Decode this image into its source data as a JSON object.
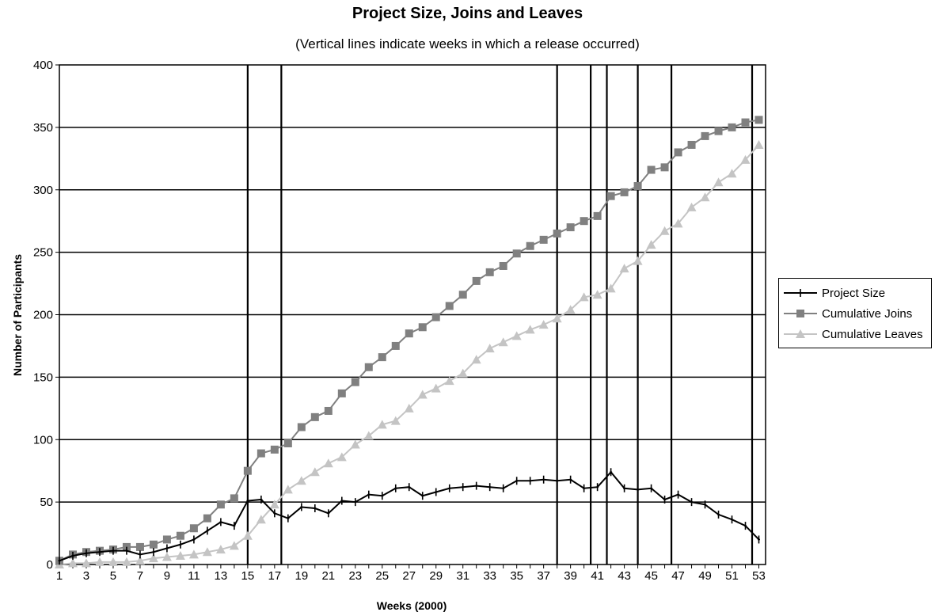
{
  "chart_data": {
    "type": "line",
    "title": "Project Size, Joins and Leaves",
    "subtitle": "(Vertical lines indicate weeks in which a release occurred)",
    "xlabel": "Weeks (2000)",
    "ylabel": "Number of Participants",
    "x": [
      1,
      2,
      3,
      4,
      5,
      6,
      7,
      8,
      9,
      10,
      11,
      12,
      13,
      14,
      15,
      16,
      17,
      18,
      19,
      20,
      21,
      22,
      23,
      24,
      25,
      26,
      27,
      28,
      29,
      30,
      31,
      32,
      33,
      34,
      35,
      36,
      37,
      38,
      39,
      40,
      41,
      42,
      43,
      44,
      45,
      46,
      47,
      48,
      49,
      50,
      51,
      52,
      53
    ],
    "x_tick_labels": [
      "1",
      "3",
      "5",
      "7",
      "9",
      "11",
      "13",
      "15",
      "17",
      "19",
      "21",
      "23",
      "25",
      "27",
      "29",
      "31",
      "33",
      "35",
      "37",
      "39",
      "41",
      "43",
      "45",
      "47",
      "49",
      "51",
      "53"
    ],
    "ylim": [
      0,
      400
    ],
    "y_ticks": [
      0,
      50,
      100,
      150,
      200,
      250,
      300,
      350,
      400
    ],
    "grid": "horizontal",
    "legend_position": "right",
    "release_weeks": [
      15,
      17.5,
      38,
      40.5,
      41.7,
      44,
      46.5,
      52.5
    ],
    "series": [
      {
        "name": "Project Size",
        "marker": "plus",
        "color": "#000000",
        "values": [
          3,
          7,
          9,
          10,
          11,
          11,
          8,
          10,
          13,
          16,
          20,
          27,
          34,
          31,
          51,
          52,
          41,
          37,
          46,
          45,
          41,
          51,
          50,
          56,
          55,
          61,
          62,
          55,
          58,
          61,
          62,
          63,
          62,
          61,
          67,
          67,
          68,
          67,
          68,
          61,
          62,
          74,
          61,
          60,
          61,
          52,
          56,
          50,
          48,
          40,
          36,
          31,
          20
        ]
      },
      {
        "name": "Cumulative Joins",
        "marker": "square",
        "color": "#808080",
        "values": [
          3,
          8,
          10,
          11,
          12,
          14,
          14,
          16,
          20,
          23,
          29,
          37,
          48,
          53,
          75,
          89,
          92,
          97,
          110,
          118,
          123,
          137,
          146,
          158,
          166,
          175,
          185,
          190,
          198,
          207,
          216,
          227,
          234,
          239,
          249,
          255,
          260,
          265,
          270,
          275,
          279,
          295,
          298,
          303,
          316,
          318,
          330,
          336,
          343,
          347,
          350,
          354,
          356
        ]
      },
      {
        "name": "Cumulative Leaves",
        "marker": "triangle",
        "color": "#c4c4c4",
        "values": [
          0,
          1,
          1,
          2,
          2,
          2,
          3,
          5,
          6,
          7,
          8,
          10,
          12,
          15,
          23,
          36,
          48,
          60,
          67,
          74,
          81,
          86,
          96,
          103,
          112,
          115,
          125,
          136,
          141,
          147,
          153,
          164,
          173,
          178,
          183,
          188,
          192,
          197,
          204,
          214,
          216,
          221,
          237,
          243,
          256,
          267,
          273,
          286,
          294,
          306,
          313,
          324,
          336
        ]
      }
    ]
  }
}
